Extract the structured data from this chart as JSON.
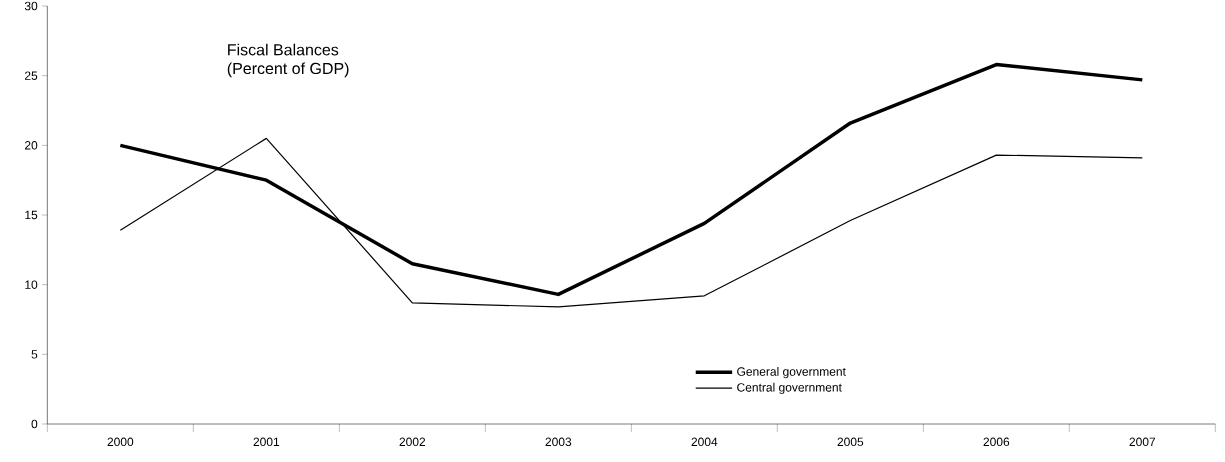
{
  "chart_data": {
    "type": "line",
    "title": "Fiscal Balances",
    "subtitle": "(Percent of GDP)",
    "categories": [
      "2000",
      "2001",
      "2002",
      "2003",
      "2004",
      "2005",
      "2006",
      "2007"
    ],
    "series": [
      {
        "name": "General government",
        "color": "#000000",
        "values": [
          20.0,
          17.5,
          11.5,
          9.3,
          14.4,
          21.6,
          25.8,
          24.7
        ]
      },
      {
        "name": "Central government",
        "color": "#000000",
        "values": [
          13.9,
          20.5,
          8.7,
          8.4,
          9.2,
          14.6,
          19.3,
          19.1
        ]
      }
    ],
    "ylim": [
      0,
      30
    ],
    "yticks": [
      0,
      5,
      10,
      15,
      20,
      25,
      30
    ],
    "grid": false,
    "legend": "bottom",
    "marker": "none",
    "line_style": "solid"
  }
}
